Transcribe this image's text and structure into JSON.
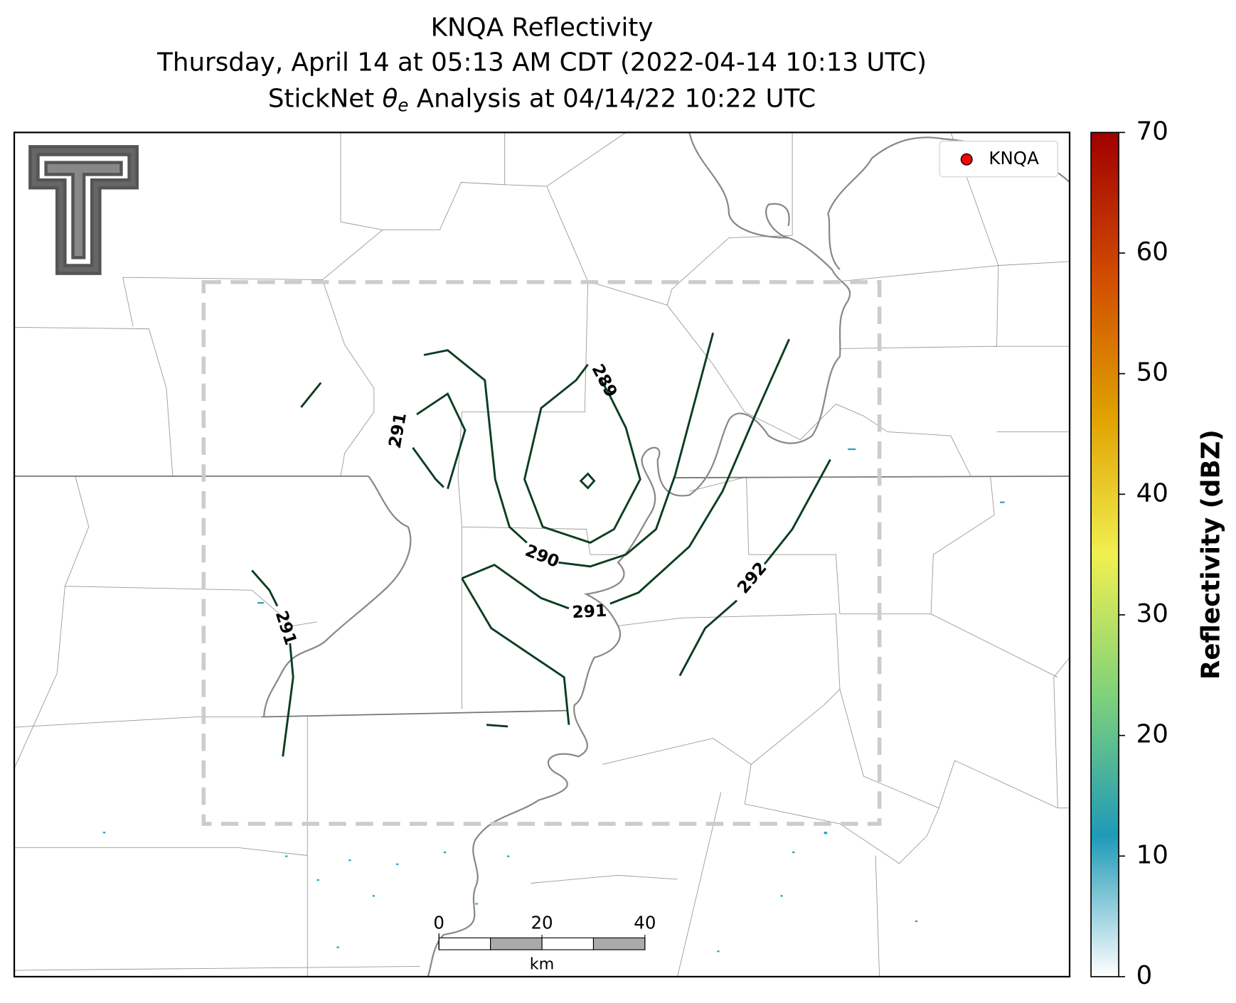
{
  "title": {
    "line1": "KNQA Reflectivity",
    "line2": "Thursday, April 14 at 05:13 AM CDT (2022-04-14 10:13 UTC)",
    "line3": {
      "before": "StickNet ",
      "theta": "θ",
      "sub": "e",
      "after": " Analysis at 04/14/22 10:22 UTC"
    }
  },
  "legend": {
    "label": "KNQA",
    "color": "#ff0000"
  },
  "contours": [
    {
      "value": 289,
      "label": "289"
    },
    {
      "value": 290,
      "label": "290"
    },
    {
      "value": 291,
      "label": "291"
    },
    {
      "value": 291,
      "label": "291"
    },
    {
      "value": 291,
      "label": "291"
    },
    {
      "value": 292,
      "label": "292"
    }
  ],
  "contour_color": "#0b3d20",
  "colorbar": {
    "label": "Reflectivity (dBZ)",
    "lim": [
      0,
      70
    ],
    "ticks": [
      0,
      10,
      20,
      30,
      40,
      50,
      60,
      70
    ],
    "colors": [
      "#ffffff",
      "#1f9ab8",
      "#7fd17a",
      "#f0f050",
      "#e0a000",
      "#d04a00",
      "#a00000"
    ]
  },
  "scale_bar": {
    "ticks": [
      0,
      20,
      40
    ],
    "unit": "km",
    "lim": [
      0,
      40
    ]
  }
}
